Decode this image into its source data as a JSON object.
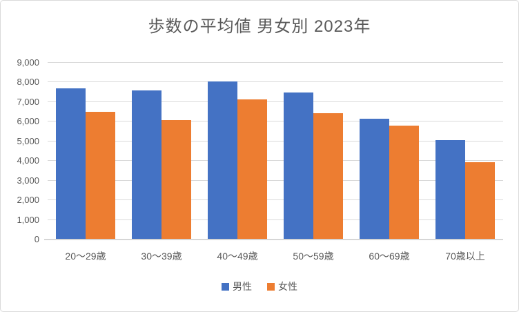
{
  "title": "歩数の平均値 男女別 2023年",
  "colors": {
    "male": "#4472C4",
    "female": "#ED7D31",
    "gridline": "#D9D9D9",
    "axis_line": "#D6D6D6",
    "text": "#595959",
    "chart_border": "#D9D9D9"
  },
  "legend": {
    "items": [
      {
        "label": "男性",
        "color": "#4472C4"
      },
      {
        "label": "女性",
        "color": "#ED7D31"
      }
    ]
  },
  "chart_data": {
    "type": "bar",
    "title": "歩数の平均値 男女別 2023年",
    "categories": [
      "20〜29歳",
      "30〜39歳",
      "40〜49歳",
      "50〜59歳",
      "60〜69歳",
      "70歳以上"
    ],
    "series": [
      {
        "name": "男性",
        "color": "#4472C4",
        "values": [
          7700,
          7600,
          8050,
          7500,
          6150,
          5050
        ]
      },
      {
        "name": "女性",
        "color": "#ED7D31",
        "values": [
          6500,
          6100,
          7150,
          6450,
          5800,
          3950
        ]
      }
    ],
    "xlabel": "",
    "ylabel": "",
    "ylim": [
      0,
      9000
    ],
    "ytick_interval": 1000,
    "ytick_labels": [
      "0",
      "1,000",
      "2,000",
      "3,000",
      "4,000",
      "5,000",
      "6,000",
      "7,000",
      "8,000",
      "9,000"
    ],
    "grid": true,
    "legend_position": "bottom"
  }
}
